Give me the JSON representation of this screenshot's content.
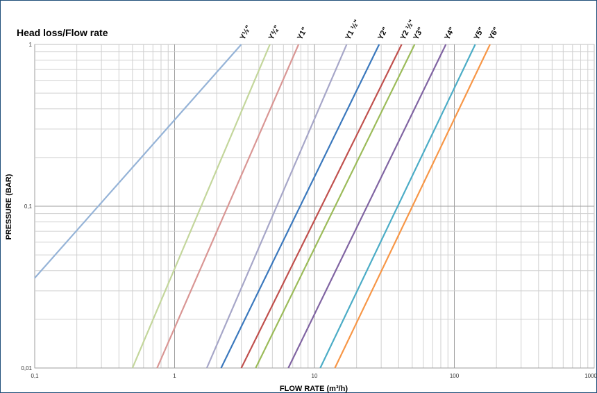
{
  "chart_data": {
    "type": "line",
    "title": "Head loss/Flow rate",
    "xlabel": "FLOW RATE (m³/h)",
    "ylabel": "PRESSURE (BAR)",
    "xscale": "log",
    "yscale": "log",
    "xlim": [
      0.1,
      1000
    ],
    "ylim": [
      0.01,
      1
    ],
    "x_ticks": [
      "0,1",
      "1",
      "10",
      "100",
      "1000"
    ],
    "y_ticks": [
      "0,01",
      "0,1",
      "1"
    ],
    "grid": true,
    "series": [
      {
        "name": "Y½\"",
        "color": "#95b3d7",
        "x": [
          0.1,
          3.0
        ],
        "y": [
          0.036,
          1
        ]
      },
      {
        "name": "Y¾\"",
        "color": "#c3d69b",
        "x": [
          0.5,
          4.8
        ],
        "y": [
          0.01,
          1
        ]
      },
      {
        "name": "Y1\"",
        "color": "#d99694",
        "x": [
          0.75,
          7.7
        ],
        "y": [
          0.01,
          1
        ]
      },
      {
        "name": "Y1 ½\"",
        "color": "#a6a6c8",
        "x": [
          1.7,
          17
        ],
        "y": [
          0.01,
          1
        ]
      },
      {
        "name": "Y2\"",
        "color": "#3a78bd",
        "x": [
          2.15,
          29
        ],
        "y": [
          0.01,
          1
        ]
      },
      {
        "name": "Y2 ½\"",
        "color": "#c0504d",
        "x": [
          3.0,
          42
        ],
        "y": [
          0.01,
          1
        ]
      },
      {
        "name": "Y3\"",
        "color": "#9bbb59",
        "x": [
          3.8,
          52
        ],
        "y": [
          0.01,
          1
        ]
      },
      {
        "name": "Y4\"",
        "color": "#8064a2",
        "x": [
          6.5,
          87
        ],
        "y": [
          0.01,
          1
        ]
      },
      {
        "name": "Y5\"",
        "color": "#4bacc6",
        "x": [
          11,
          141
        ],
        "y": [
          0.01,
          1
        ]
      },
      {
        "name": "Y6\"",
        "color": "#f79646",
        "x": [
          14,
          180
        ],
        "y": [
          0.01,
          1
        ]
      }
    ]
  }
}
